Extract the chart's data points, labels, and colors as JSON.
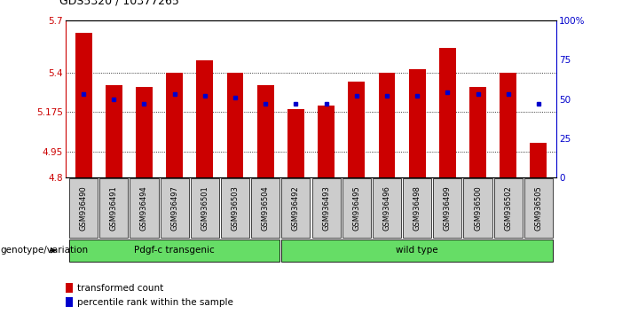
{
  "title": "GDS5320 / 10377265",
  "samples": [
    "GSM936490",
    "GSM936491",
    "GSM936494",
    "GSM936497",
    "GSM936501",
    "GSM936503",
    "GSM936504",
    "GSM936492",
    "GSM936493",
    "GSM936495",
    "GSM936496",
    "GSM936498",
    "GSM936499",
    "GSM936500",
    "GSM936502",
    "GSM936505"
  ],
  "red_values": [
    5.63,
    5.33,
    5.32,
    5.4,
    5.47,
    5.4,
    5.33,
    5.19,
    5.21,
    5.35,
    5.4,
    5.42,
    5.54,
    5.32,
    5.4,
    5.0
  ],
  "blue_values": [
    5.28,
    5.25,
    5.22,
    5.28,
    5.27,
    5.26,
    5.22,
    5.22,
    5.22,
    5.27,
    5.27,
    5.27,
    5.29,
    5.28,
    5.28,
    5.22
  ],
  "ymin": 4.8,
  "ymax": 5.7,
  "yticks": [
    4.8,
    4.95,
    5.175,
    5.4,
    5.7
  ],
  "ytick_labels": [
    "4.8",
    "4.95",
    "5.175",
    "5.4",
    "5.7"
  ],
  "y2min": 0,
  "y2max": 100,
  "y2ticks": [
    0,
    25,
    50,
    75,
    100
  ],
  "y2tick_labels": [
    "0",
    "25",
    "50",
    "75",
    "100%"
  ],
  "bar_color": "#cc0000",
  "dot_color": "#0000cc",
  "axis_color_left": "#cc0000",
  "axis_color_right": "#0000cc",
  "group1_label": "Pdgf-c transgenic",
  "group2_label": "wild type",
  "group1_count": 7,
  "group2_count": 9,
  "group_bar_color": "#66dd66",
  "xlabel_left": "genotype/variation",
  "legend_red": "transformed count",
  "legend_blue": "percentile rank within the sample",
  "background_color": "#ffffff",
  "tick_bg": "#cccccc"
}
